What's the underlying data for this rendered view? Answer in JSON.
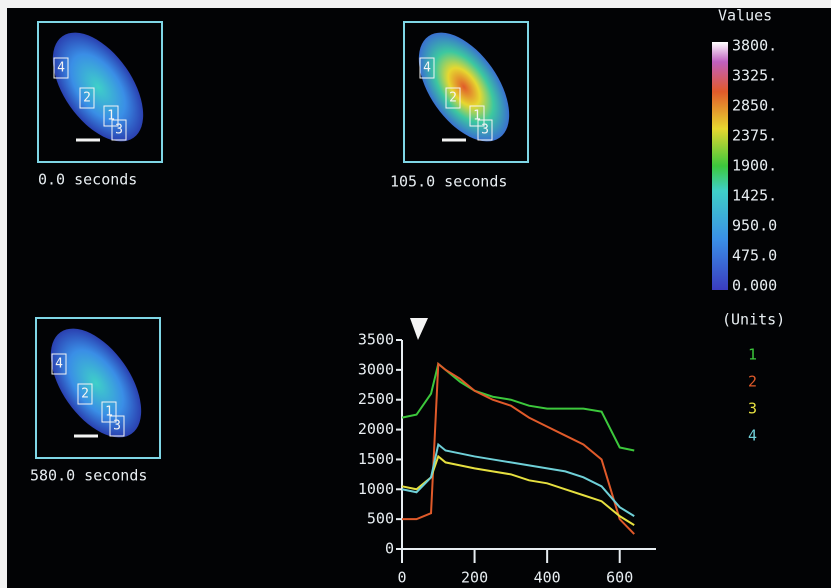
{
  "panels": [
    {
      "caption": "0.0 seconds",
      "region_labels": [
        "4",
        "2",
        "1",
        "3"
      ]
    },
    {
      "caption": "105.0 seconds",
      "region_labels": [
        "4",
        "2",
        "1",
        "3"
      ]
    },
    {
      "caption": "580.0 seconds",
      "region_labels": [
        "4",
        "2",
        "1",
        "3"
      ]
    }
  ],
  "colorbar": {
    "title": "Values",
    "labels": [
      "3800.",
      "3325.",
      "2850.",
      "2375.",
      "1900.",
      "1425.",
      "950.0",
      "475.0",
      "0.000"
    ],
    "units": "(Units)"
  },
  "chart_data": {
    "type": "line",
    "x": [
      0,
      40,
      80,
      100,
      120,
      160,
      200,
      250,
      300,
      350,
      400,
      450,
      500,
      550,
      600,
      640
    ],
    "series": [
      {
        "name": "1",
        "color": "#3cc83c",
        "values": [
          2200,
          2250,
          2600,
          3100,
          3000,
          2800,
          2650,
          2550,
          2500,
          2400,
          2350,
          2350,
          2350,
          2300,
          1700,
          1650
        ]
      },
      {
        "name": "2",
        "color": "#e05a2a",
        "values": [
          500,
          500,
          600,
          3100,
          3000,
          2850,
          2650,
          2500,
          2400,
          2200,
          2050,
          1900,
          1750,
          1500,
          500,
          250
        ]
      },
      {
        "name": "3",
        "color": "#e6e040",
        "values": [
          1050,
          1000,
          1200,
          1550,
          1450,
          1400,
          1350,
          1300,
          1250,
          1150,
          1100,
          1000,
          900,
          800,
          550,
          400
        ]
      },
      {
        "name": "4",
        "color": "#6fd0d8",
        "values": [
          1000,
          950,
          1200,
          1750,
          1650,
          1600,
          1550,
          1500,
          1450,
          1400,
          1350,
          1300,
          1200,
          1050,
          700,
          550
        ]
      }
    ],
    "xlim": [
      0,
      700
    ],
    "xticks": [
      0,
      200,
      400,
      600
    ],
    "ylim": [
      0,
      3500
    ],
    "yticks": [
      0,
      500,
      1000,
      1500,
      2000,
      2500,
      3000,
      3500
    ]
  }
}
